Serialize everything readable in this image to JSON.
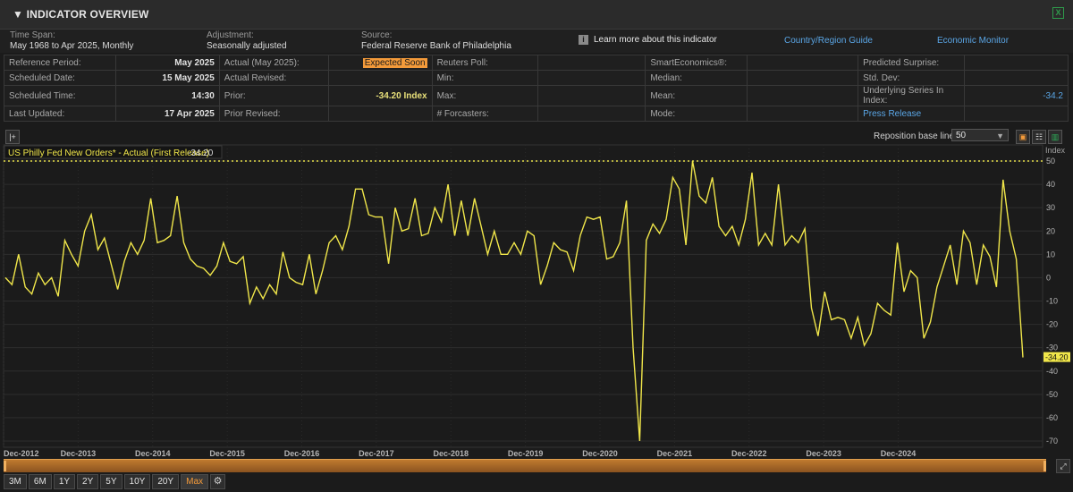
{
  "header": {
    "title": "▼ INDICATOR OVERVIEW",
    "excel_icon": "excel-icon"
  },
  "info": {
    "time_span_label": "Time Span:",
    "time_span_value": "May 1968 to Apr 2025, Monthly",
    "adjustment_label": "Adjustment:",
    "adjustment_value": "Seasonally adjusted",
    "source_label": "Source:",
    "source_value": "Federal Reserve Bank of Philadelphia",
    "learn_more": "Learn more about this indicator",
    "country_guide": "Country/Region Guide",
    "economic_monitor": "Economic Monitor"
  },
  "stats": {
    "rows": [
      {
        "c1l": "Reference Period:",
        "c1v": "May 2025",
        "c2l": "Actual (May 2025):",
        "c2v": "Expected Soon",
        "c3l": "Reuters Poll:",
        "c3v": "",
        "c4l": "SmartEconomics®:",
        "c4v": "",
        "c5l": "Predicted Surprise:",
        "c5v": ""
      },
      {
        "c1l": "Scheduled Date:",
        "c1v": "15 May 2025",
        "c2l": "Actual Revised:",
        "c2v": "",
        "c3l": "Min:",
        "c3v": "",
        "c4l": "Median:",
        "c4v": "",
        "c5l": "Std. Dev:",
        "c5v": ""
      },
      {
        "c1l": "Scheduled Time:",
        "c1v": "14:30",
        "c2l": "Prior:",
        "c2v": "-34.20 Index",
        "c3l": "Max:",
        "c3v": "",
        "c4l": "Mean:",
        "c4v": "",
        "c5l": "Underlying Series In Index:",
        "c5v": "-34.2"
      },
      {
        "c1l": "Last Updated:",
        "c1v": "17 Apr 2025",
        "c2l": "Prior Revised:",
        "c2v": "",
        "c3l": "# Forcasters:",
        "c3v": "",
        "c4l": "Mode:",
        "c4v": "",
        "c5l": "Press Release",
        "c5v": ""
      }
    ]
  },
  "toolbar": {
    "reposition_label": "Reposition base line:",
    "reposition_value": "50",
    "first_button": "|+"
  },
  "zoom": {
    "buttons": [
      "3M",
      "6M",
      "1Y",
      "2Y",
      "5Y",
      "10Y",
      "20Y",
      "Max"
    ],
    "selected": "Max"
  },
  "colors": {
    "line": "#f0e64a",
    "background": "#1b1b1b",
    "grid": "#2e2e2e",
    "accent": "#f39a3a",
    "link": "#5aa6e6"
  },
  "chart_data": {
    "type": "line",
    "legend": "US Philly Fed New Orders* - Actual (First Release)",
    "legend_value": "-34.20",
    "ylabel": "Index",
    "ylim": [
      -70,
      50
    ],
    "y_ticks": [
      50,
      40,
      30,
      20,
      10,
      0,
      -10,
      -20,
      -30,
      -40,
      -50,
      -60,
      -70
    ],
    "baseline": 50,
    "last_value_label": "-34.20",
    "x_ticks": [
      "Dec-2012",
      "Dec-2013",
      "Dec-2014",
      "Dec-2015",
      "Dec-2016",
      "Dec-2017",
      "Dec-2018",
      "Dec-2019",
      "Dec-2020",
      "Dec-2021",
      "Dec-2022",
      "Dec-2023",
      "Dec-2024"
    ],
    "start_label": "Dec-2012",
    "values": [
      0,
      -3,
      10,
      -4,
      -7,
      2,
      -3,
      0,
      -8,
      16,
      10,
      5,
      20,
      27,
      12,
      17,
      6,
      -5,
      7,
      15,
      10,
      16,
      34,
      15,
      16,
      18,
      35,
      15,
      8,
      5,
      4,
      1,
      5,
      15,
      7,
      6,
      9,
      -11,
      -4,
      -9,
      -3,
      -7,
      11,
      0,
      -2,
      -3,
      10,
      -7,
      3,
      15,
      18,
      12,
      22,
      38,
      38,
      27,
      26,
      26,
      6,
      30,
      20,
      21,
      34,
      18,
      19,
      30,
      24,
      40,
      18,
      33,
      18,
      34,
      22,
      10,
      20,
      10,
      10,
      15,
      10,
      20,
      18,
      -3,
      5,
      15,
      12,
      11,
      3,
      18,
      26,
      25,
      26,
      8,
      9,
      15,
      33,
      -30,
      -70,
      16,
      23,
      19,
      25,
      43,
      38,
      14,
      50,
      35,
      32,
      43,
      22,
      18,
      22,
      14,
      25,
      45,
      14,
      19,
      14,
      40,
      14,
      18,
      15,
      21,
      -13,
      -25,
      -6,
      -18,
      -17,
      -18,
      -26,
      -17,
      -29,
      -24,
      -11,
      -14,
      -16,
      15,
      -6,
      3,
      0,
      -26,
      -19,
      -4,
      5,
      14,
      -3,
      20,
      15,
      -3,
      14,
      9,
      -4,
      42,
      20,
      8,
      -34.2
    ]
  }
}
